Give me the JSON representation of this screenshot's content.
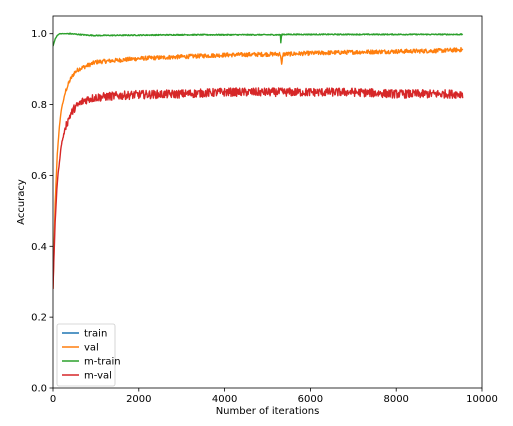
{
  "chart_data": {
    "type": "line",
    "title": "",
    "xlabel": "Number of iterations",
    "ylabel": "Accuracy",
    "xlim": [
      0,
      10000
    ],
    "ylim": [
      0.0,
      1.05
    ],
    "xticks": [
      0,
      2000,
      4000,
      6000,
      8000,
      10000
    ],
    "yticks": [
      0.0,
      0.2,
      0.4,
      0.6,
      0.8,
      1.0
    ],
    "xtick_labels": [
      "0",
      "2000",
      "4000",
      "6000",
      "8000",
      "10000"
    ],
    "ytick_labels": [
      "0.0",
      "0.2",
      "0.4",
      "0.6",
      "0.8",
      "1.0"
    ],
    "grid": false,
    "legend": "lower-left",
    "series": [
      {
        "name": "train",
        "color": "#1f77b4",
        "x": [
          0
        ],
        "y": [
          0.99
        ]
      },
      {
        "name": "val",
        "color": "#ff7f0e",
        "x": [
          0,
          50,
          100,
          150,
          200,
          300,
          400,
          500,
          600,
          800,
          1000,
          1500,
          2000,
          3000,
          4000,
          5000,
          5300,
          5330,
          5360,
          6000,
          7000,
          8000,
          9000,
          9550
        ],
        "y": [
          0.28,
          0.52,
          0.66,
          0.74,
          0.79,
          0.84,
          0.87,
          0.89,
          0.9,
          0.91,
          0.92,
          0.925,
          0.93,
          0.935,
          0.94,
          0.942,
          0.943,
          0.91,
          0.942,
          0.945,
          0.948,
          0.95,
          0.952,
          0.955
        ]
      },
      {
        "name": "m-train",
        "color": "#2ca02c",
        "x": [
          0,
          50,
          100,
          150,
          200,
          400,
          600,
          800,
          1000,
          2000,
          3000,
          4000,
          5000,
          5300,
          5310,
          5330,
          5350,
          6000,
          7000,
          8000,
          9000,
          9550
        ],
        "y": [
          0.965,
          0.985,
          0.995,
          1.0,
          1.0,
          1.0,
          0.998,
          0.996,
          0.995,
          0.996,
          0.997,
          0.997,
          0.997,
          0.997,
          0.975,
          0.997,
          0.998,
          0.998,
          0.998,
          0.998,
          0.998,
          0.998
        ]
      },
      {
        "name": "m-val",
        "color": "#d62728",
        "x": [
          0,
          50,
          100,
          150,
          200,
          300,
          400,
          500,
          600,
          700,
          800,
          1000,
          1500,
          2000,
          3000,
          4000,
          5000,
          6000,
          7000,
          8000,
          9000,
          9550
        ],
        "y": [
          0.28,
          0.47,
          0.58,
          0.64,
          0.69,
          0.74,
          0.77,
          0.79,
          0.8,
          0.81,
          0.815,
          0.82,
          0.825,
          0.828,
          0.83,
          0.835,
          0.835,
          0.835,
          0.835,
          0.83,
          0.83,
          0.83
        ]
      }
    ]
  }
}
